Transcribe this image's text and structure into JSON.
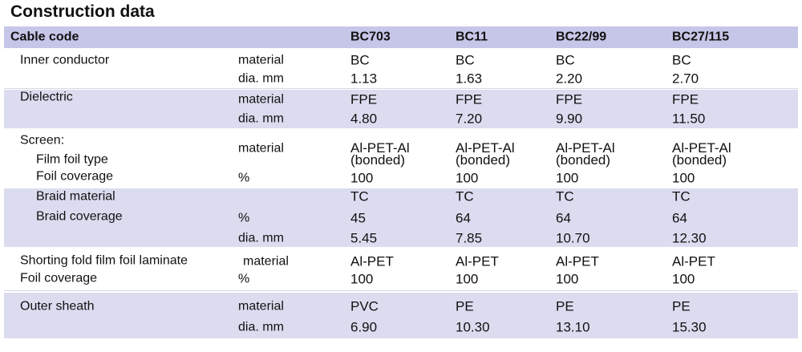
{
  "title": "Construction data",
  "table": {
    "header": [
      "Cable code",
      "BC703",
      "BC11",
      "BC22/99",
      "BC27/115"
    ],
    "groups": [
      {
        "rows": [
          {
            "label": "Inner conductor",
            "unit": "material",
            "values": [
              "BC",
              "BC",
              "BC",
              "BC"
            ]
          },
          {
            "unit": "dia. mm",
            "values": [
              "1.13",
              "1.63",
              "2.20",
              "2.70"
            ]
          }
        ]
      },
      {
        "rows": [
          {
            "label": "Dielectric",
            "unit": "material",
            "values": [
              "FPE",
              "FPE",
              "FPE",
              "FPE"
            ]
          },
          {
            "unit": "dia. mm",
            "values": [
              "4.80",
              "7.20",
              "9.90",
              "11.50"
            ]
          }
        ]
      },
      {
        "rows": [
          {
            "label": "Screen:"
          },
          {
            "label": "Film foil type",
            "unit": "material",
            "values": [
              "Al-PET-Al\n(bonded)",
              "Al-PET-Al\n(bonded)",
              "Al-PET-Al\n(bonded)",
              "Al-PET-Al\n(bonded)"
            ]
          },
          {
            "label": "Foil coverage",
            "unit": "%",
            "values": [
              "100",
              "100",
              "100",
              "100"
            ]
          }
        ]
      },
      {
        "rows": [
          {
            "label": "Braid material",
            "values": [
              "TC",
              "TC",
              "TC",
              "TC"
            ]
          },
          {
            "label": "Braid coverage",
            "unit": "%",
            "values": [
              "45",
              "64",
              "64",
              "64"
            ]
          },
          {
            "unit": "dia. mm",
            "values": [
              "5.45",
              "7.85",
              "10.70",
              "12.30"
            ]
          }
        ]
      },
      {
        "rows": [
          {
            "label": "Shorting fold film foil laminate",
            "unit": "material",
            "values": [
              "Al-PET",
              "Al-PET",
              "Al-PET",
              "Al-PET"
            ]
          },
          {
            "label": "Foil coverage",
            "unit": "%",
            "values": [
              "100",
              "100",
              "100",
              "100"
            ]
          }
        ]
      },
      {
        "rows": [
          {
            "label": "Outer sheath",
            "unit": "material",
            "values": [
              "PVC",
              "PE",
              "PE",
              "PE"
            ]
          },
          {
            "unit": "dia. mm",
            "values": [
              "6.90",
              "10.30",
              "13.10",
              "15.30"
            ]
          }
        ]
      }
    ]
  }
}
